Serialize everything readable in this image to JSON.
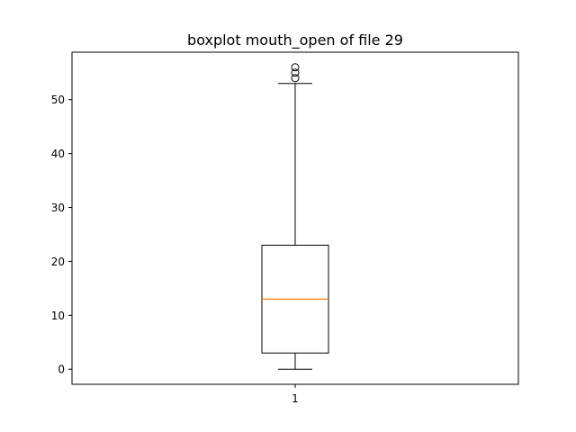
{
  "chart_data": {
    "type": "boxplot",
    "title": "boxplot mouth_open of file 29",
    "xlabel": "",
    "ylabel": "",
    "categories": [
      "1"
    ],
    "ylim": [
      -2.8,
      58.8
    ],
    "yticks": [
      0,
      10,
      20,
      30,
      40,
      50
    ],
    "ytick_labels": [
      "0",
      "10",
      "20",
      "30",
      "40",
      "50"
    ],
    "grid": false,
    "boxes": [
      {
        "category": "1",
        "whisker_low": 0,
        "q1": 3,
        "median": 13,
        "q3": 23,
        "whisker_high": 53,
        "outliers": [
          54,
          55,
          56
        ]
      }
    ],
    "colors": {
      "box": "#000000",
      "median": "#ff7f0e",
      "outlier_edge": "#000000"
    }
  }
}
